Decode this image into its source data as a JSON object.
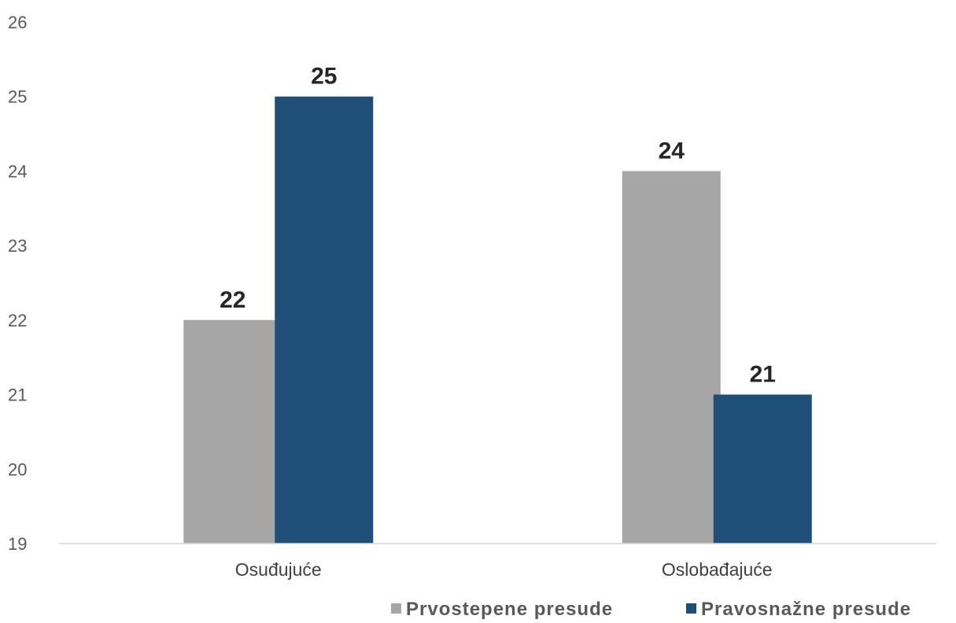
{
  "chart_data": {
    "type": "bar",
    "categories": [
      "Osuđujuće",
      "Oslobađajuće"
    ],
    "series": [
      {
        "name": "Prvostepene presude",
        "values": [
          22,
          24
        ],
        "color": "#a6a6a6"
      },
      {
        "name": "Pravosnažne presude",
        "values": [
          25,
          21
        ],
        "color": "#1f4e79"
      }
    ],
    "ylim": [
      19,
      26
    ],
    "yticks": [
      19,
      20,
      21,
      22,
      23,
      24,
      25,
      26
    ],
    "title": "",
    "xlabel": "",
    "ylabel": "",
    "grid": false,
    "legend_position": "bottom-right",
    "axis_color": "#d9d9d9"
  }
}
